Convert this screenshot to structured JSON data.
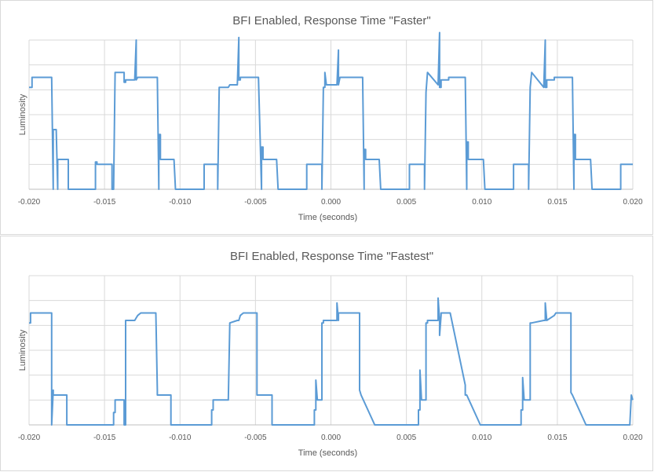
{
  "chart_data": [
    {
      "type": "line",
      "title": "BFI Enabled, Response Time \"Faster\"",
      "xlabel": "Time (seconds)",
      "ylabel": "Luminosity",
      "xlim": [
        -0.02,
        0.02
      ],
      "ylim": [
        0,
        6
      ],
      "x_ticks": [
        "-0.020",
        "-0.015",
        "-0.010",
        "-0.005",
        "0.000",
        "0.005",
        "0.010",
        "0.015",
        "0.020"
      ],
      "grid": true,
      "legend": "none",
      "line_color": "#5b9bd5",
      "series": [
        {
          "x": [
            -0.02,
            -0.0198,
            -0.0198,
            -0.0186,
            -0.0185,
            -0.0184,
            -0.0184,
            -0.0182,
            -0.0181,
            -0.0181,
            -0.0174,
            -0.0174,
            -0.0172,
            -0.0172,
            -0.0156,
            -0.0156,
            -0.0155,
            -0.0155,
            -0.0145,
            -0.0145,
            -0.0144,
            -0.0144,
            -0.0143,
            -0.0137,
            -0.0137,
            -0.0136,
            -0.0136,
            -0.013,
            -0.0129,
            -0.0129,
            -0.0128,
            -0.0128,
            -0.0126,
            -0.0126,
            -0.0115,
            -0.0114,
            -0.0114,
            -0.0113,
            -0.0113,
            -0.0112,
            -0.0112,
            -0.0104,
            -0.0104,
            -0.0103,
            -0.0103,
            -0.0084,
            -0.0084,
            -0.0083,
            -0.0083,
            -0.0075,
            -0.0075,
            -0.0074,
            -0.0068,
            -0.0068,
            -0.0067,
            -0.0067,
            -0.0062,
            -0.0061,
            -0.0061,
            -0.006,
            -0.006,
            -0.0058,
            -0.0058,
            -0.0048,
            -0.0046,
            -0.0046,
            -0.0045,
            -0.0045,
            -0.0044,
            -0.0044,
            -0.0036,
            -0.0036,
            -0.0035,
            -0.0035,
            -0.0016,
            -0.0016,
            -0.0015,
            -0.0015,
            -0.0006,
            -0.0006,
            -0.0005,
            -0.0004,
            -0.0004,
            -0.0003,
            -0.0003,
            0.0004,
            0.0004,
            0.0005,
            0.0005,
            0.0006,
            0.0006,
            0.0008,
            0.0008,
            0.0021,
            0.0022,
            0.0022,
            0.0023,
            0.0023,
            0.0024,
            0.0024,
            0.0032,
            0.0032,
            0.0033,
            0.0033,
            0.0052,
            0.0052,
            0.0053,
            0.0053,
            0.0062,
            0.0062,
            0.0063,
            0.0063,
            0.0064,
            0.0071,
            0.0071,
            0.0072,
            0.0072,
            0.0073,
            0.0073,
            0.0078,
            0.0078,
            0.0079,
            0.0079,
            0.0089,
            0.009,
            0.009,
            0.0091,
            0.0091,
            0.0092,
            0.0092,
            0.0101,
            0.0101,
            0.0102,
            0.0102,
            0.0121,
            0.0121,
            0.0122,
            0.0122,
            0.0131,
            0.0131,
            0.0132,
            0.0132,
            0.0133,
            0.0141,
            0.0141,
            0.0142,
            0.0142,
            0.0143,
            0.0143,
            0.0148,
            0.0148,
            0.0149,
            0.0149,
            0.016,
            0.0161,
            0.0161,
            0.0162,
            0.0162,
            0.0163,
            0.0163,
            0.0172,
            0.0172,
            0.0173,
            0.0173,
            0.0192,
            0.0192,
            0.0193,
            0.0193,
            0.02
          ],
          "y": [
            4.1,
            4.1,
            4.5,
            4.5,
            4.5,
            0,
            2.4,
            2.4,
            0,
            1.2,
            1.2,
            0,
            0,
            0,
            0,
            1.1,
            1.1,
            1.0,
            1.0,
            0,
            0,
            0,
            4.7,
            4.7,
            4.3,
            4.3,
            4.4,
            4.4,
            6.0,
            4.4,
            4.5,
            4.5,
            4.5,
            4.5,
            4.5,
            0,
            2.2,
            2.2,
            1.2,
            1.2,
            1.2,
            1.2,
            1.2,
            0,
            0,
            0,
            1.0,
            1.0,
            1.0,
            1.0,
            0,
            4.1,
            4.1,
            4.1,
            4.2,
            4.2,
            4.2,
            6.1,
            4.4,
            4.4,
            4.5,
            4.5,
            4.5,
            4.5,
            0,
            1.7,
            1.7,
            1.2,
            1.2,
            1.2,
            1.2,
            1.2,
            0,
            0,
            0,
            1.0,
            1.0,
            1.0,
            1.0,
            0,
            4.1,
            4.1,
            4.7,
            4.2,
            4.2,
            4.2,
            4.2,
            5.6,
            4.2,
            4.5,
            4.5,
            4.5,
            4.5,
            4.5,
            0,
            1.6,
            1.6,
            1.2,
            1.2,
            1.2,
            1.2,
            1.2,
            0,
            0,
            0,
            1.0,
            1.0,
            1.0,
            1.0,
            0,
            3.9,
            3.9,
            4.7,
            4.2,
            4.2,
            6.3,
            4.1,
            4.1,
            4.4,
            4.4,
            4.5,
            4.5,
            4.5,
            4.5,
            0,
            1.9,
            1.9,
            1.2,
            1.2,
            1.2,
            1.2,
            1.2,
            0,
            0,
            0,
            1.0,
            1.0,
            1.0,
            1.0,
            0,
            4.1,
            4.1,
            4.7,
            4.1,
            4.1,
            6.0,
            4.1,
            4.1,
            4.4,
            4.4,
            4.5,
            4.5,
            4.5,
            4.5,
            0,
            2.2,
            2.2,
            1.2,
            1.2,
            1.2,
            1.2,
            1.2,
            0,
            0,
            0,
            1.0,
            1.0,
            1.0,
            1.0
          ]
        }
      ]
    },
    {
      "type": "line",
      "title": "BFI Enabled, Response Time \"Fastest\"",
      "xlabel": "Time (seconds)",
      "ylabel": "Luminosity",
      "xlim": [
        -0.02,
        0.02
      ],
      "ylim": [
        0,
        6
      ],
      "x_ticks": [
        "-0.020",
        "-0.015",
        "-0.010",
        "-0.005",
        "0.000",
        "0.005",
        "0.010",
        "0.015",
        "0.020"
      ],
      "grid": true,
      "legend": "none",
      "line_color": "#5b9bd5",
      "series": [
        {
          "x": [
            -0.02,
            -0.0199,
            -0.0199,
            -0.0198,
            -0.0198,
            -0.0186,
            -0.0185,
            -0.0185,
            -0.0184,
            -0.0184,
            -0.0175,
            -0.0175,
            -0.0144,
            -0.0144,
            -0.0143,
            -0.0143,
            -0.0137,
            -0.0137,
            -0.0136,
            -0.0136,
            -0.013,
            -0.0129,
            -0.0129,
            -0.0128,
            -0.0128,
            -0.0126,
            -0.0126,
            -0.0116,
            -0.0116,
            -0.0115,
            -0.0115,
            -0.0106,
            -0.0106,
            -0.0079,
            -0.0079,
            -0.0078,
            -0.0078,
            -0.0077,
            -0.0068,
            -0.0068,
            -0.0067,
            -0.0067,
            -0.0062,
            -0.0061,
            -0.0061,
            -0.006,
            -0.006,
            -0.0058,
            -0.0058,
            -0.0049,
            -0.0049,
            -0.0048,
            -0.0048,
            -0.0039,
            -0.0039,
            -0.0011,
            -0.0011,
            -0.001,
            -0.001,
            -0.0009,
            -0.0009,
            -0.0007,
            -0.0006,
            -0.0006,
            -0.0005,
            -0.0005,
            -0.0004,
            -0.0004,
            0.0004,
            0.0004,
            0.0005,
            0.0005,
            0.0006,
            0.0006,
            0.0008,
            0.0008,
            0.0019,
            0.0019,
            0.002,
            0.002,
            0.0029,
            0.0029,
            0.0058,
            0.0058,
            0.0059,
            0.0059,
            0.006,
            0.006,
            0.0062,
            0.0063,
            0.0063,
            0.0064,
            0.0064,
            0.0071,
            0.0071,
            0.0072,
            0.0072,
            0.0073,
            0.0073,
            0.0078,
            0.0078,
            0.0079,
            0.0079,
            0.0089,
            0.0089,
            0.009,
            0.009,
            0.0099,
            0.0099,
            0.0126,
            0.0126,
            0.0127,
            0.0127,
            0.0128,
            0.0128,
            0.0131,
            0.0131,
            0.0132,
            0.0132,
            0.0133,
            0.0141,
            0.0141,
            0.0142,
            0.0142,
            0.0143,
            0.0143,
            0.0148,
            0.0148,
            0.0149,
            0.0149,
            0.0158,
            0.0159,
            0.0159,
            0.016,
            0.016,
            0.0169,
            0.0169,
            0.0198,
            0.0198,
            0.0199,
            0.0199,
            0.02
          ],
          "y": [
            4.1,
            4.1,
            4.5,
            4.5,
            4.5,
            4.5,
            4.5,
            0,
            1.4,
            1.2,
            1.2,
            0,
            0,
            0.5,
            0.5,
            1.0,
            1.0,
            0,
            0,
            4.2,
            4.2,
            4.3,
            4.3,
            4.4,
            4.4,
            4.5,
            4.5,
            4.5,
            4.5,
            1.4,
            1.2,
            1.2,
            0,
            0,
            0.6,
            0.6,
            1.0,
            1.0,
            1.0,
            1.0,
            4.1,
            4.1,
            4.2,
            4.2,
            4.2,
            4.4,
            4.4,
            4.5,
            4.5,
            4.5,
            1.2,
            1.2,
            1.2,
            1.2,
            0,
            0,
            0.6,
            0.6,
            1.8,
            1.0,
            1.0,
            1.0,
            1.0,
            4.1,
            4.1,
            4.2,
            4.2,
            4.2,
            4.2,
            4.9,
            4.2,
            4.5,
            4.5,
            4.5,
            4.5,
            4.5,
            4.5,
            1.4,
            1.2,
            1.2,
            0,
            0,
            0,
            0.6,
            0.6,
            2.2,
            1.0,
            1.0,
            1.0,
            1.0,
            4.1,
            4.1,
            4.2,
            4.2,
            5.1,
            4.2,
            3.6,
            4.4,
            4.5,
            4.5,
            4.5,
            4.5,
            4.5,
            1.6,
            1.2,
            1.2,
            1.2,
            0,
            0,
            0,
            0.6,
            0.6,
            1.9,
            1.0,
            1.0,
            1.0,
            1.0,
            1.0,
            4.1,
            4.1,
            4.2,
            4.2,
            4.2,
            4.9,
            4.2,
            4.2,
            4.4,
            4.4,
            4.5,
            4.5,
            4.5,
            4.5,
            1.3,
            1.2,
            1.2,
            0,
            0,
            0,
            0,
            1.2,
            1.2,
            1.0
          ]
        }
      ]
    }
  ]
}
